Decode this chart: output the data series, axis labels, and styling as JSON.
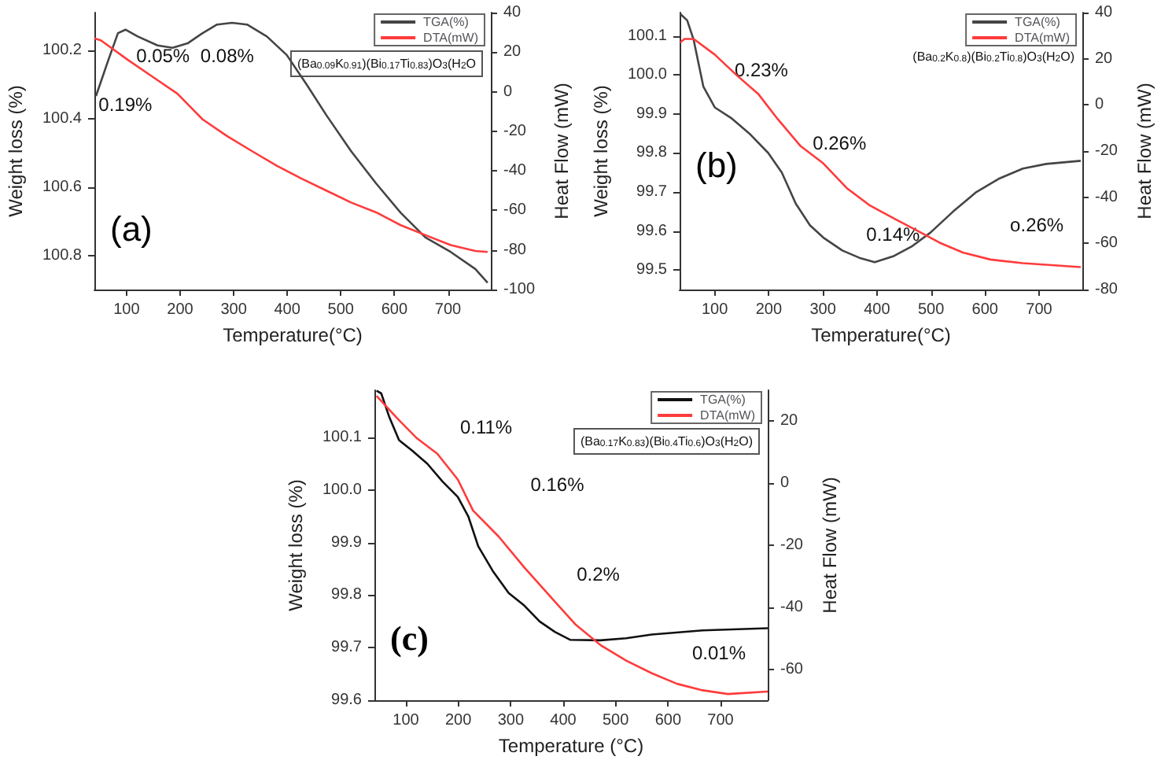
{
  "chart_data": [
    {
      "type": "line",
      "xlabel": "Temperature(°C)",
      "ylabel": "Weight loss (%)",
      "y2label": "Heat Flow (mW)",
      "legend": "top right",
      "xlim": [
        40,
        780
      ],
      "xticks": [
        100,
        200,
        300,
        400,
        500,
        600,
        700
      ],
      "ylim": [
        100.9,
        100.09
      ],
      "yticks": [
        100.2,
        100.4,
        100.6,
        100.8
      ],
      "y2lim": [
        -100,
        40
      ],
      "y2ticks": [
        -100,
        -80,
        -60,
        -40,
        -20,
        0,
        20,
        40
      ],
      "series": [
        {
          "name": "TGA(%)",
          "color": "#454545",
          "x": [
            43,
            66,
            84,
            98,
            121,
            158,
            186,
            214,
            242,
            269,
            297,
            325,
            362,
            399,
            436,
            473,
            519,
            566,
            612,
            658,
            705,
            751,
            774
          ],
          "values": [
            100.334,
            100.229,
            100.15,
            100.14,
            100.16,
            100.186,
            100.193,
            100.18,
            100.15,
            100.125,
            100.12,
            100.125,
            100.16,
            100.214,
            100.3,
            100.39,
            100.495,
            100.59,
            100.676,
            100.748,
            100.79,
            100.84,
            100.88
          ]
        },
        {
          "name": "DTA(mW)",
          "color": "#ff3b3b",
          "axis": "y2",
          "x": [
            40,
            52,
            103,
            149,
            195,
            242,
            288,
            334,
            381,
            427,
            473,
            519,
            566,
            612,
            658,
            705,
            751,
            774
          ],
          "values": [
            27,
            26,
            16,
            7.5,
            -1,
            -14,
            -22.5,
            -30,
            -37.5,
            -44,
            -50,
            -56,
            -61,
            -67.5,
            -72.5,
            -77.5,
            -80.5,
            -81
          ]
        }
      ],
      "annotations": [
        "0.19%",
        "0.05%",
        "0.08%",
        "(a)",
        "(Ba$_{0.09}$K$_{0.91}$)(Bi$_{0.17}$Ti$_{0.83}$)O$_{3}$(H$_{2}$O"
      ]
    },
    {
      "type": "line",
      "xlabel": "Temperature(°C)",
      "ylabel": "Weight loss (%)",
      "y2label": "Heat Flow (mW)",
      "legend": "top right",
      "xlim": [
        35,
        780
      ],
      "xticks": [
        100,
        200,
        300,
        400,
        500,
        600,
        700
      ],
      "ylim": [
        99.45,
        100.16
      ],
      "yticks": [
        99.5,
        99.6,
        99.7,
        99.8,
        99.9,
        {
          "value": 100,
          "label": "100.0"
        },
        100.1
      ],
      "y2lim": [
        -80,
        40
      ],
      "y2ticks": [
        -80,
        -60,
        -40,
        -20,
        0,
        20,
        40
      ],
      "series": [
        {
          "name": "TGA(%)",
          "color": "#454545",
          "x": [
            36,
            49,
            61,
            79,
            100,
            130,
            164,
            199,
            224,
            250,
            276,
            301,
            336,
            370,
            396,
            430,
            464,
            499,
            541,
            584,
            627,
            670,
            713,
            777
          ],
          "values": [
            100.157,
            100.14,
            100.09,
            99.97,
            99.917,
            99.89,
            99.85,
            99.8,
            99.75,
            99.67,
            99.615,
            99.583,
            99.55,
            99.53,
            99.52,
            99.535,
            99.56,
            99.596,
            99.65,
            99.7,
            99.735,
            99.76,
            99.772,
            99.78
          ]
        },
        {
          "name": "DTA(mW)",
          "color": "#ff3b3b",
          "axis": "y2",
          "x": [
            36,
            44,
            61,
            100,
            139,
            181,
            216,
            259,
            301,
            344,
            387,
            430,
            473,
            516,
            559,
            610,
            670,
            777
          ],
          "values": [
            27,
            28.6,
            28.6,
            21.8,
            13.2,
            4.6,
            -6,
            -17.9,
            -25.4,
            -36,
            -43.6,
            -49,
            -54.3,
            -59.7,
            -64,
            -67,
            -68.6,
            -70.3
          ]
        }
      ],
      "annotations": [
        "0.23%",
        "0.26%",
        "0.14%",
        "o.26%",
        "(b)",
        "(Ba$_{0.2}$K$_{0.8}$)(Bi$_{0.2}$Ti$_{0.8}$)O$_{3}$(H$_{2}$O)"
      ]
    },
    {
      "type": "line",
      "xlabel": "Temperature (°C)",
      "ylabel": "Weight loss (%)",
      "y2label": "Heat Flow (mW)",
      "legend": "top right",
      "xlim": [
        40,
        790
      ],
      "xticks": [
        100,
        200,
        300,
        400,
        500,
        600,
        700
      ],
      "ylim": [
        99.6,
        100.19
      ],
      "yticks": [
        99.6,
        99.7,
        99.8,
        99.9,
        {
          "value": 100,
          "label": "100.0"
        },
        100.1
      ],
      "y2lim": [
        -70,
        30
      ],
      "y2ticks": [
        -60,
        -40,
        -20,
        0,
        20
      ],
      "series": [
        {
          "name": "TGA(%)",
          "color": "#111111",
          "x": [
            44,
            53,
            68,
            87,
            112,
            141,
            170,
            199,
            219,
            238,
            267,
            296,
            326,
            355,
            384,
            413,
            471,
            520,
            569,
            666,
            790
          ],
          "values": [
            100.189,
            100.184,
            100.14,
            100.095,
            100.075,
            100.05,
            100.016,
            99.987,
            99.95,
            99.893,
            99.844,
            99.804,
            99.78,
            99.75,
            99.73,
            99.715,
            99.714,
            99.718,
            99.725,
            99.733,
            99.737
          ]
        },
        {
          "name": "DTA(mW)",
          "color": "#ff3b3b",
          "axis": "y2",
          "x": [
            44,
            82,
            121,
            160,
            199,
            228,
            277,
            326,
            374,
            423,
            471,
            520,
            569,
            617,
            666,
            714,
            790
          ],
          "values": [
            28.2,
            21.2,
            14.5,
            9.5,
            1.2,
            -8.8,
            -17.2,
            -27.2,
            -36.3,
            -45.5,
            -52.2,
            -57.2,
            -61.3,
            -64.7,
            -66.8,
            -68,
            -67.2
          ]
        }
      ],
      "annotations": [
        "0.11%",
        "0.16%",
        "0.2%",
        "0.01%",
        "(c)",
        "(Ba$_{0.17}$K$_{0.83}$)(Bi$_{0.4}$Ti$_{0.6}$)O$_{3}$(H$_{2}$O)"
      ]
    }
  ]
}
